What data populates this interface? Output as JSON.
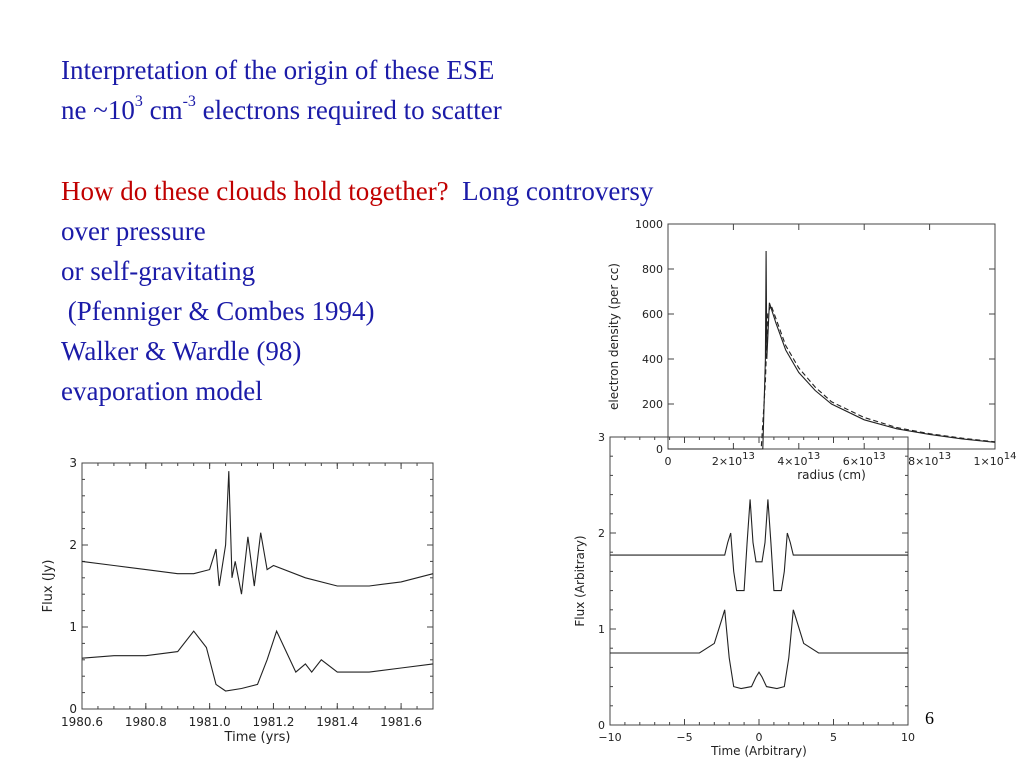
{
  "slide": {
    "line1": "Interpretation of the origin of these ESE",
    "line2": {
      "a": "ne ~10",
      "b": "3",
      "c": " cm",
      "d": "-3",
      "e": " electrons required to scatter"
    },
    "question": "How do these clouds hold together?",
    "question_rest": "Long controversy",
    "line4": "over pressure",
    "line5": "or self-gravitating",
    "line6": " (Pfenniger & Combes 1994)",
    "line7": "Walker & Wardle (98)",
    "line8": "evaporation model",
    "page_number": "6",
    "colors": {
      "text": "#1b1ba8",
      "highlight": "#c00000"
    }
  },
  "chart_data": [
    {
      "type": "line",
      "xlabel": "radius (cm)",
      "ylabel": "electron density (per cc)",
      "xlim": [
        0,
        100000000000000.0
      ],
      "ylim": [
        0,
        1000
      ],
      "xticks": [
        {
          "v": 0,
          "label": "0"
        },
        {
          "v": 20000000000000.0,
          "label": "2×10",
          "exp": "13"
        },
        {
          "v": 40000000000000.0,
          "label": "4×10",
          "exp": "13"
        },
        {
          "v": 60000000000000.0,
          "label": "6×10",
          "exp": "13"
        },
        {
          "v": 80000000000000.0,
          "label": "8×10",
          "exp": "13"
        },
        {
          "v": 100000000000000.0,
          "label": "1×10",
          "exp": "14"
        }
      ],
      "yticks": [
        0,
        200,
        400,
        600,
        800,
        1000
      ],
      "series": [
        {
          "style": "solid",
          "x": [
            0,
            29000000000000.0,
            29800000000000.0,
            30000000000000.0,
            30200000000000.0,
            31000000000000.0,
            33000000000000.0,
            36000000000000.0,
            40000000000000.0,
            45000000000000.0,
            50000000000000.0,
            60000000000000.0,
            70000000000000.0,
            80000000000000.0,
            90000000000000.0,
            100000000000000.0
          ],
          "y": [
            0,
            0,
            400,
            880,
            400,
            650,
            560,
            440,
            340,
            260,
            200,
            130,
            90,
            65,
            45,
            30
          ]
        },
        {
          "style": "dashed",
          "x": [
            0,
            28500000000000.0,
            29800000000000.0,
            30500000000000.0,
            31500000000000.0,
            33000000000000.0,
            36000000000000.0,
            40000000000000.0,
            45000000000000.0,
            50000000000000.0,
            60000000000000.0,
            70000000000000.0,
            80000000000000.0,
            90000000000000.0,
            100000000000000.0
          ],
          "y": [
            0,
            0,
            300,
            600,
            640,
            580,
            460,
            360,
            275,
            210,
            140,
            95,
            68,
            48,
            32
          ]
        }
      ]
    },
    {
      "type": "line",
      "xlabel": "Time (yrs)",
      "ylabel": "Flux  (Jy)",
      "xlim": [
        1980.6,
        1981.7
      ],
      "ylim": [
        0,
        3
      ],
      "xticks": [
        1980.6,
        1980.8,
        1981.0,
        1981.2,
        1981.4,
        1981.6
      ],
      "xticklabels": [
        "1980.6",
        "1980.8",
        "1981.0",
        "1981.2",
        "1981.4",
        "1981.6"
      ],
      "yticks": [
        0,
        1,
        2,
        3
      ],
      "series": [
        {
          "name": "upper",
          "x": [
            1980.6,
            1980.7,
            1980.8,
            1980.9,
            1980.95,
            1981.0,
            1981.02,
            1981.03,
            1981.05,
            1981.06,
            1981.07,
            1981.08,
            1981.1,
            1981.12,
            1981.14,
            1981.16,
            1981.18,
            1981.2,
            1981.3,
            1981.4,
            1981.5,
            1981.6,
            1981.7
          ],
          "y": [
            1.8,
            1.75,
            1.7,
            1.65,
            1.65,
            1.7,
            1.95,
            1.5,
            2.0,
            2.9,
            1.6,
            1.8,
            1.4,
            2.1,
            1.5,
            2.15,
            1.7,
            1.75,
            1.6,
            1.5,
            1.5,
            1.55,
            1.65
          ]
        },
        {
          "name": "lower",
          "x": [
            1980.6,
            1980.7,
            1980.8,
            1980.9,
            1980.95,
            1980.99,
            1981.02,
            1981.05,
            1981.1,
            1981.15,
            1981.18,
            1981.21,
            1981.24,
            1981.27,
            1981.3,
            1981.32,
            1981.35,
            1981.4,
            1981.5,
            1981.6,
            1981.7
          ],
          "y": [
            0.62,
            0.65,
            0.65,
            0.7,
            0.95,
            0.75,
            0.3,
            0.22,
            0.25,
            0.3,
            0.6,
            0.95,
            0.7,
            0.45,
            0.55,
            0.45,
            0.6,
            0.45,
            0.45,
            0.5,
            0.55
          ]
        }
      ]
    },
    {
      "type": "line",
      "xlabel": "Time (Arbitrary)",
      "ylabel": "Flux (Arbitrary)",
      "xlim": [
        -10,
        10
      ],
      "ylim": [
        0,
        3
      ],
      "xticks": [
        -10,
        -5,
        0,
        5,
        10
      ],
      "yticks": [
        0,
        1,
        2,
        3
      ],
      "series": [
        {
          "name": "upper",
          "x": [
            -10,
            -2.3,
            -2.1,
            -1.9,
            -1.7,
            -1.5,
            -1.3,
            -1.0,
            -0.8,
            -0.6,
            -0.4,
            -0.2,
            0,
            0.2,
            0.4,
            0.6,
            0.8,
            1.0,
            1.3,
            1.5,
            1.7,
            1.9,
            2.1,
            2.3,
            10
          ],
          "y": [
            1.77,
            1.77,
            1.9,
            2.0,
            1.6,
            1.4,
            1.4,
            1.4,
            1.9,
            2.35,
            1.9,
            1.7,
            1.7,
            1.7,
            1.9,
            2.35,
            1.9,
            1.4,
            1.4,
            1.4,
            1.6,
            2.0,
            1.9,
            1.77,
            1.77
          ]
        },
        {
          "name": "lower",
          "x": [
            -10,
            -4,
            -3,
            -2.5,
            -2.3,
            -2.0,
            -1.7,
            -1.2,
            -0.5,
            -0.2,
            0,
            0.2,
            0.5,
            1.2,
            1.7,
            2.0,
            2.3,
            2.5,
            3,
            4,
            10
          ],
          "y": [
            0.75,
            0.75,
            0.85,
            1.1,
            1.2,
            0.7,
            0.4,
            0.38,
            0.4,
            0.5,
            0.55,
            0.5,
            0.4,
            0.38,
            0.4,
            0.7,
            1.2,
            1.1,
            0.85,
            0.75,
            0.75
          ]
        }
      ]
    }
  ]
}
